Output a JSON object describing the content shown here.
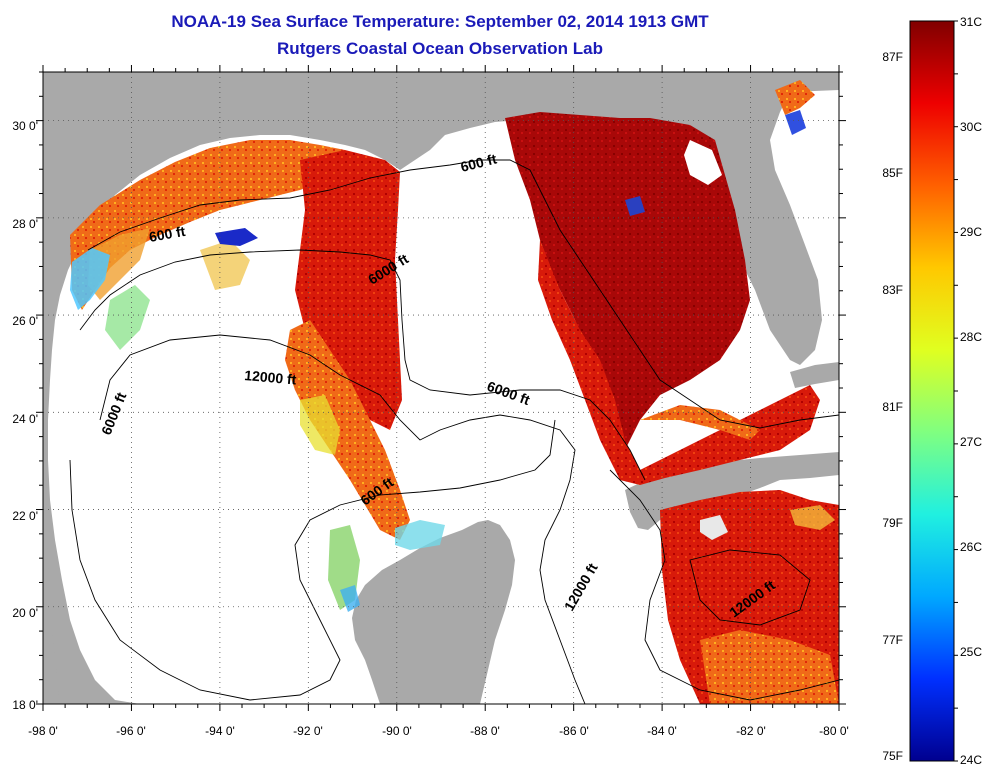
{
  "header": {
    "title": "NOAA-19 Sea Surface Temperature:  September 02, 2014 1913 GMT",
    "subtitle": "Rutgers Coastal Ocean Observation Lab"
  },
  "axes": {
    "lon_ticks": [
      "-98 0'",
      "-96 0'",
      "-94 0'",
      "-92 0'",
      "-90 0'",
      "-88 0'",
      "-86 0'",
      "-84 0'",
      "-82 0'",
      "-80 0'"
    ],
    "lat_ticks": [
      "30 0'",
      "28 0'",
      "26 0'",
      "24 0'",
      "22 0'",
      "20 0'",
      "18 0'"
    ],
    "lon_range": [
      -98,
      -80
    ],
    "lat_range": [
      18,
      31
    ]
  },
  "contours": {
    "labels": [
      "600 ft",
      "600 ft",
      "6000 ft",
      "12000 ft",
      "6000 ft",
      "6000 ft",
      "600 ft",
      "12000 ft",
      "12000 ft"
    ]
  },
  "colorbar": {
    "c_labels": [
      "31C",
      "30C",
      "29C",
      "28C",
      "27C",
      "26C",
      "25C",
      "24C"
    ],
    "f_labels": [
      "87F",
      "85F",
      "83F",
      "81F",
      "79F",
      "77F",
      "75F"
    ],
    "c_range": [
      24,
      31
    ],
    "colors": [
      "#00008f",
      "#0030ff",
      "#00a8ff",
      "#20f0e0",
      "#80ff80",
      "#e0ff20",
      "#ffc800",
      "#ff6000",
      "#ee0000",
      "#800000"
    ]
  }
}
